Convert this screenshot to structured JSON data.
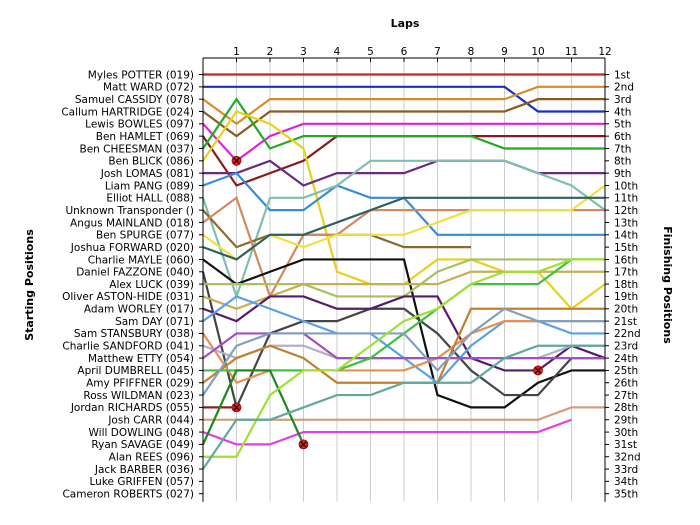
{
  "chart_data": {
    "type": "line",
    "title": "",
    "xlabel": "Laps",
    "ylabel_left": "Starting Positions",
    "ylabel_right": "Finishing Positions",
    "x_ticks": [
      "1",
      "2",
      "3",
      "4",
      "5",
      "6",
      "7",
      "8",
      "9",
      "10",
      "11",
      "12"
    ],
    "xlim": [
      0,
      12
    ],
    "ylim": [
      1,
      35
    ],
    "grid": "vertical",
    "drivers": [
      "Myles POTTER (019)",
      "Matt WARD (072)",
      "Samuel CASSIDY (078)",
      "Callum HARTRIDGE (024)",
      "Lewis BOWLES (097)",
      "Ben HAMLET (069)",
      "Ben CHEESMAN (037)",
      "Ben BLICK (086)",
      "Josh LOMAS (081)",
      "Liam PANG (089)",
      "Elliot HALL (088)",
      "Unknown Transponder ()",
      "Angus MAINLAND (018)",
      "Ben SPURGE (077)",
      "Joshua FORWARD (020)",
      "Charlie MAYLE (060)",
      "Daniel FAZZONE (040)",
      "Alex LUCK (039)",
      "Oliver ASTON-HIDE (031)",
      "Adam WORLEY (017)",
      "Sam DAY (071)",
      "Sam STANSBURY (038)",
      "Charlie SANDFORD (041)",
      "Matthew ETTY (054)",
      "April DUMBRELL (045)",
      "Amy PFIFFNER (029)",
      "Ross WILDMAN (023)",
      "Jordan RICHARDS (055)",
      "Josh CARR (044)",
      "Will DOWLING (048)",
      "Ryan SAVAGE (049)",
      "Alan REES (096)",
      "Jack BARBER (036)",
      "Luke GRIFFEN (057)",
      "Cameron ROBERTS (027)"
    ],
    "finishing_positions": [
      "1st",
      "2nd",
      "3rd",
      "4th",
      "5th",
      "6th",
      "7th",
      "8th",
      "9th",
      "10th",
      "11th",
      "12th",
      "13th",
      "14th",
      "15th",
      "16th",
      "17th",
      "18th",
      "19th",
      "20th",
      "21st",
      "22nd",
      "23rd",
      "24th",
      "25th",
      "26th",
      "27th",
      "28th",
      "29th",
      "30th",
      "31st",
      "32nd",
      "33rd",
      "34th",
      "35th"
    ],
    "series": [
      {
        "name": "Myles POTTER (019)",
        "color": "#cc2222",
        "values": [
          1,
          1,
          1,
          1,
          1,
          1,
          1,
          1,
          1,
          1,
          1,
          1,
          1
        ]
      },
      {
        "name": "Matt WARD (072)",
        "color": "#1a2ec8",
        "values": [
          2,
          2,
          2,
          2,
          2,
          2,
          2,
          2,
          2,
          2,
          4,
          4,
          4
        ]
      },
      {
        "name": "Samuel CASSIDY (078)",
        "color": "#d98a2a",
        "values": [
          3,
          5,
          3,
          3,
          3,
          3,
          3,
          3,
          3,
          3,
          2,
          2,
          2
        ]
      },
      {
        "name": "Callum HARTRIDGE (024)",
        "color": "#8a5a20",
        "values": [
          4,
          6,
          4,
          4,
          4,
          4,
          4,
          4,
          4,
          4,
          3,
          3,
          3
        ]
      },
      {
        "name": "Lewis BOWLES (097)",
        "color": "#dd22dd",
        "values": [
          5,
          8,
          6,
          5,
          5,
          5,
          5,
          5,
          5,
          5,
          5,
          5,
          5
        ]
      },
      {
        "name": "Ben HAMLET (069)",
        "color": "#8a1a1a",
        "values": [
          6,
          10,
          9,
          8,
          6,
          6,
          6,
          6,
          6,
          6,
          6,
          6,
          6
        ]
      },
      {
        "name": "Ben CHEESMAN (037)",
        "color": "#22aa22",
        "values": [
          7,
          3,
          7,
          6,
          6,
          6,
          6,
          6,
          6,
          7,
          7,
          7,
          7
        ]
      },
      {
        "name": "Ben BLICK (086)",
        "color": "#e6d21a",
        "values": [
          8,
          4,
          5,
          7,
          17,
          18,
          18,
          16,
          16,
          17,
          17,
          20,
          18
        ]
      },
      {
        "name": "Josh LOMAS (081)",
        "color": "#6a2a80",
        "values": [
          9,
          9,
          8,
          10,
          9,
          9,
          9,
          8,
          8,
          8,
          9,
          9,
          9
        ]
      },
      {
        "name": "Liam PANG (089)",
        "color": "#3a8ad8",
        "values": [
          10,
          9,
          12,
          12,
          10,
          11,
          11,
          14,
          14,
          14,
          14,
          14,
          14
        ]
      },
      {
        "name": "Elliot HALL (088)",
        "color": "#7fbfb0",
        "values": [
          11,
          19,
          11,
          11,
          10,
          8,
          8,
          8,
          8,
          8,
          9,
          10,
          12
        ]
      },
      {
        "name": "Unknown Transponder ()",
        "color": "#8a6a30",
        "values": [
          12,
          15,
          14,
          14,
          14,
          14,
          15,
          15,
          15
        ]
      },
      {
        "name": "Angus MAINLAND (018)",
        "color": "#d08a60",
        "values": [
          13,
          11,
          19,
          14,
          14,
          12,
          12,
          12,
          12,
          12,
          12,
          12,
          12
        ]
      },
      {
        "name": "Ben SPURGE (077)",
        "color": "#f0e040",
        "values": [
          14,
          16,
          14,
          15,
          14,
          14,
          14,
          13,
          12,
          12,
          12,
          12,
          10
        ]
      },
      {
        "name": "Joshua FORWARD (020)",
        "color": "#306060",
        "values": [
          15,
          16,
          14,
          14,
          13,
          12,
          11,
          11,
          11,
          11,
          11,
          11,
          11
        ]
      },
      {
        "name": "Charlie MAYLE (060)",
        "color": "#111111",
        "values": [
          16,
          18,
          17,
          16,
          16,
          16,
          16,
          27,
          28,
          28,
          26,
          25,
          25
        ]
      },
      {
        "name": "Daniel FAZZONE (040)",
        "color": "#444444",
        "values": [
          17,
          28,
          22,
          21,
          21,
          20,
          20,
          22,
          25,
          27,
          27,
          24,
          24
        ]
      },
      {
        "name": "Alex LUCK (039)",
        "color": "#a8c060",
        "values": [
          18,
          18,
          18,
          18,
          19,
          19,
          19,
          17,
          16,
          16,
          16,
          16,
          16
        ]
      },
      {
        "name": "Oliver ASTON-HIDE (031)",
        "color": "#c8b050",
        "values": [
          19,
          20,
          19,
          18,
          18,
          18,
          18,
          18,
          17,
          17,
          17,
          17,
          17
        ]
      },
      {
        "name": "Adam WORLEY (017)",
        "color": "#5a1a6a",
        "values": [
          20,
          21,
          19,
          19,
          20,
          20,
          19,
          19,
          24,
          25,
          25,
          23,
          24
        ]
      },
      {
        "name": "Sam DAY (071)",
        "color": "#5aa0e8",
        "values": [
          21,
          19,
          20,
          21,
          22,
          22,
          24,
          26,
          23,
          21,
          21,
          22,
          22
        ]
      },
      {
        "name": "Sam STANSBURY (038)",
        "color": "#e89050",
        "values": [
          22,
          26,
          25,
          25,
          25,
          25,
          25,
          24,
          22,
          21,
          21,
          21,
          21
        ]
      },
      {
        "name": "Charlie SANDFORD (041)",
        "color": "#b0b0c8",
        "values": [
          23,
          24,
          23,
          23,
          24,
          24,
          24,
          24,
          24,
          24,
          24,
          23,
          23
        ]
      },
      {
        "name": "Matthew ETTY (054)",
        "color": "#a050c0",
        "values": [
          24,
          22,
          22,
          22,
          24,
          24,
          24,
          24,
          24,
          24,
          24,
          24,
          24
        ]
      },
      {
        "name": "April DUMBRELL (045)",
        "color": "#40c040",
        "values": [
          25,
          25,
          25,
          25,
          25,
          24,
          22,
          20,
          18,
          18,
          18,
          16,
          16
        ]
      },
      {
        "name": "Amy PFIFFNER (029)",
        "color": "#c08030",
        "values": [
          26,
          24,
          23,
          24,
          26,
          26,
          26,
          26,
          20,
          20,
          20,
          20,
          20
        ]
      },
      {
        "name": "Ross WILDMAN (023)",
        "color": "#80a0c0",
        "values": [
          27,
          23,
          22,
          22,
          22,
          22,
          22,
          25,
          22,
          20,
          21,
          21,
          21
        ]
      },
      {
        "name": "Jordan RICHARDS (055)",
        "color": "#8a2020",
        "values": [
          28,
          28
        ]
      },
      {
        "name": "Josh CARR (044)",
        "color": "#d0a080",
        "values": [
          29,
          29,
          29,
          29,
          29,
          29,
          29,
          29,
          29,
          29,
          29,
          28,
          28
        ]
      },
      {
        "name": "Will DOWLING (048)",
        "color": "#e040e0",
        "values": [
          30,
          31,
          31,
          30,
          30,
          30,
          30,
          30,
          30,
          30,
          30,
          29
        ]
      },
      {
        "name": "Ryan SAVAGE (049)",
        "color": "#1a8a1a",
        "values": [
          31,
          25,
          25,
          31
        ]
      },
      {
        "name": "Alan REES (096)",
        "color": "#a0e030",
        "values": [
          32,
          32,
          27,
          25,
          25,
          23,
          21,
          20,
          18,
          17,
          17,
          16,
          16
        ]
      },
      {
        "name": "Jack BARBER (036)",
        "color": "#60a8a0",
        "values": [
          33,
          29,
          29,
          28,
          27,
          27,
          26,
          26,
          26,
          24,
          23,
          23,
          23
        ]
      }
    ],
    "retirements": [
      {
        "driver": "Ben BLICK (086)",
        "lap": 1,
        "position": 8
      },
      {
        "driver": "Jordan RICHARDS (055)",
        "lap": 1,
        "position": 28
      },
      {
        "driver": "Ryan SAVAGE (049)",
        "lap": 3,
        "position": 31
      },
      {
        "driver": "Charlie MAYLE (060)",
        "lap": 10,
        "position": 25
      }
    ]
  }
}
